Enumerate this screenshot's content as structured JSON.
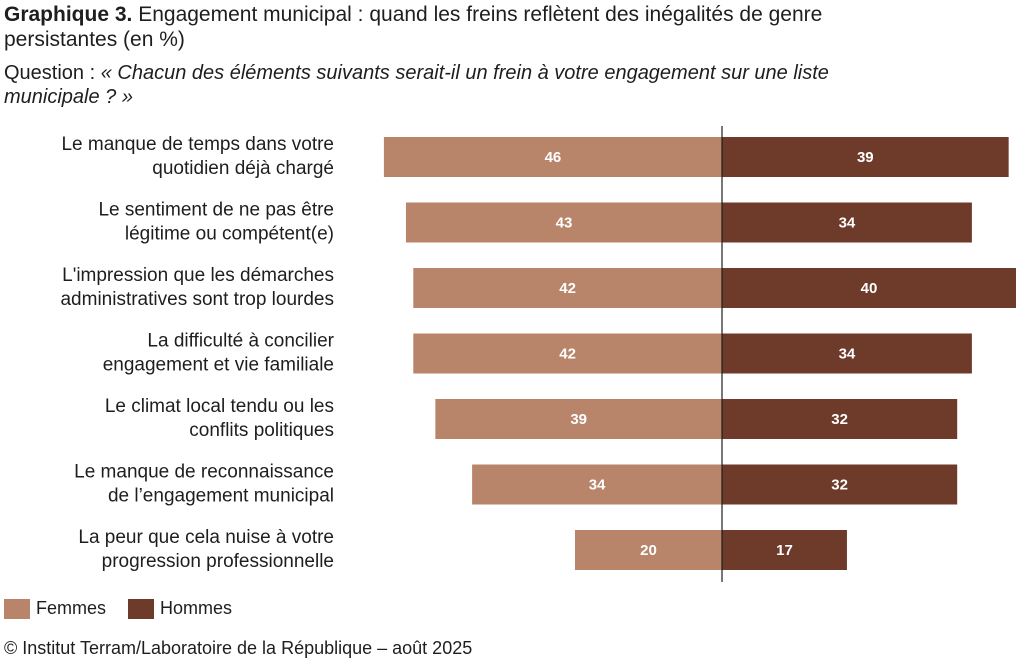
{
  "title": {
    "prefix": "Graphique 3.",
    "text": "Engagement municipal : quand les freins reflètent des inégalités de genre persistantes (en %)"
  },
  "question": {
    "label": "Question :",
    "text": "« Chacun des éléments suivants serait-il un frein à votre engagement sur une liste municipale ? »"
  },
  "colors": {
    "femmes": "#b8856a",
    "hommes": "#6e3a2a",
    "axis": "#1e1e1e"
  },
  "chart_data": {
    "type": "bar",
    "orientation": "horizontal-diverging",
    "categories": [
      [
        "Le manque de temps dans votre",
        "quotidien déjà chargé"
      ],
      [
        "Le sentiment de ne pas être",
        "légitime ou compétent(e)"
      ],
      [
        "L'impression que les démarches",
        "administratives sont trop lourdes"
      ],
      [
        "La difficulté à concilier",
        "engagement et vie familiale"
      ],
      [
        "Le climat local tendu ou les",
        "conflits politiques"
      ],
      [
        "Le manque de reconnaissance",
        "de l’engagement municipal"
      ],
      [
        "La peur que cela nuise à votre",
        "progression professionnelle"
      ]
    ],
    "series": [
      {
        "name": "Femmes",
        "values": [
          46,
          43,
          42,
          42,
          39,
          34,
          20
        ]
      },
      {
        "name": "Hommes",
        "values": [
          39,
          34,
          40,
          34,
          32,
          32,
          17
        ]
      }
    ],
    "legend_position": "bottom-left",
    "grid": false
  },
  "source": "© Institut Terram/Laboratoire de la République – août 2025"
}
